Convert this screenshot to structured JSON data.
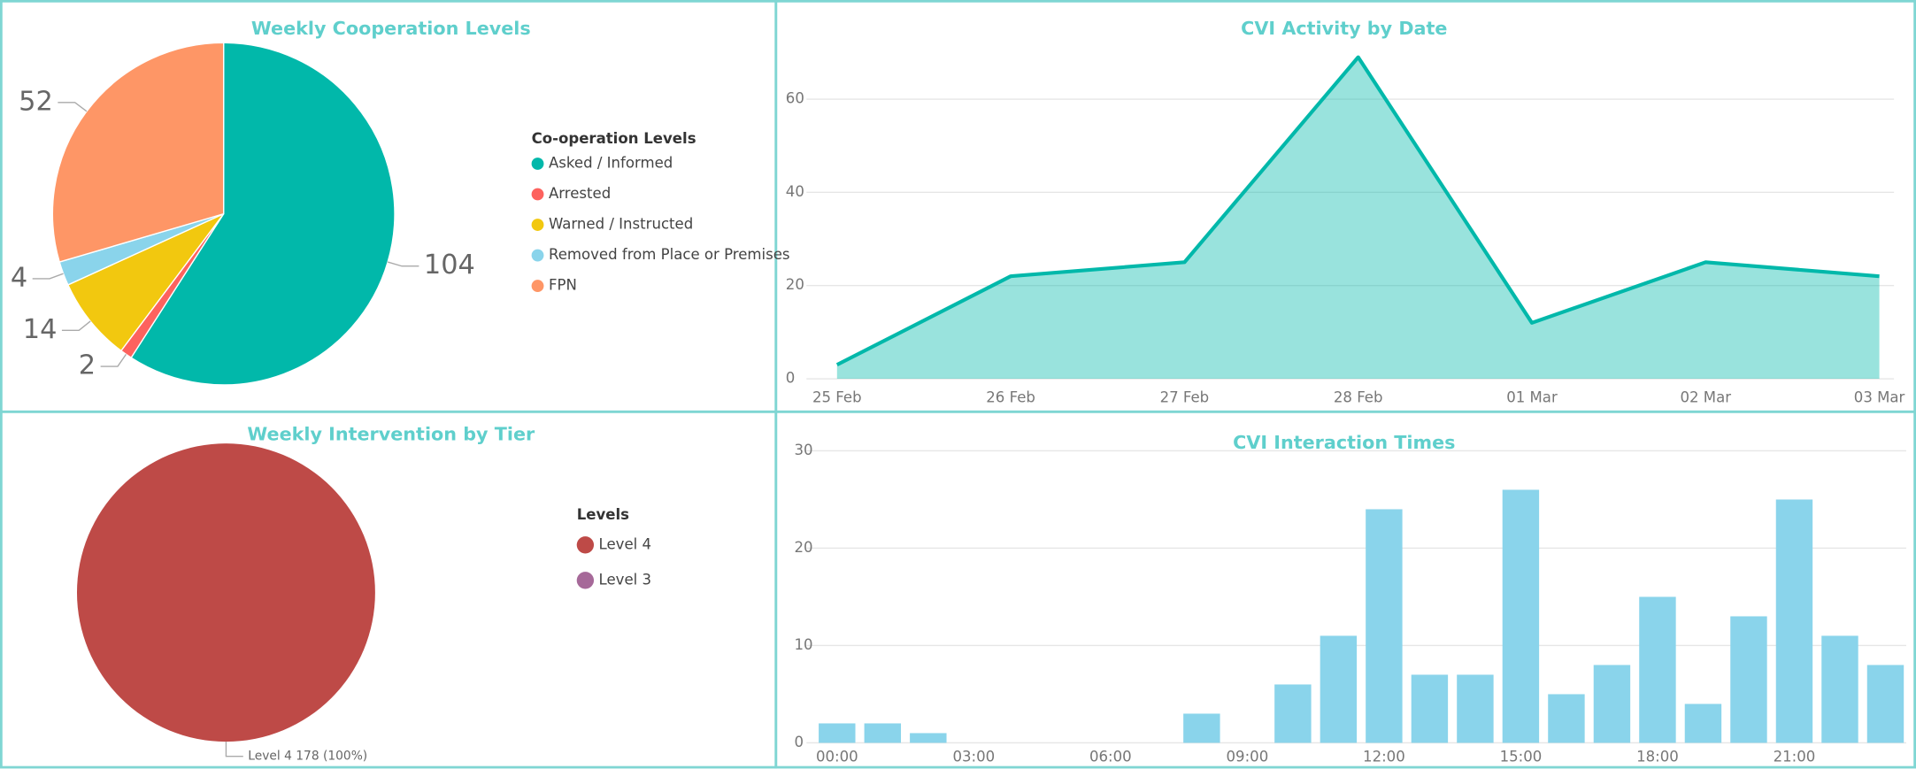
{
  "chart_data": [
    {
      "type": "pie",
      "title": "Weekly Cooperation Levels",
      "legend_title": "Co-operation Levels",
      "categories": [
        "Asked / Informed",
        "Arrested",
        "Warned / Instructed",
        "Removed from Place or Premises",
        "FPN"
      ],
      "values": [
        104,
        2,
        14,
        4,
        52
      ],
      "colors": [
        "#01B8AA",
        "#FD625E",
        "#F2C80F",
        "#8AD4EB",
        "#FE9666"
      ]
    },
    {
      "type": "area",
      "title": "CVI Activity by Date",
      "categories": [
        "25 Feb",
        "26 Feb",
        "27 Feb",
        "28 Feb",
        "01 Mar",
        "02 Mar",
        "03 Mar"
      ],
      "values": [
        3,
        22,
        25,
        69,
        12,
        25,
        22
      ],
      "color": "#01B8AA",
      "ylim": [
        0,
        70
      ],
      "yticks": [
        0,
        20,
        40,
        60
      ],
      "grid": true
    },
    {
      "type": "pie",
      "title": "Weekly Intervention by Tier",
      "legend_title": "Levels",
      "categories": [
        "Level 4",
        "Level 3"
      ],
      "values": [
        178,
        0
      ],
      "value_labels": [
        "Level 4 178 (100%)",
        null
      ],
      "colors": [
        "#BE4A47",
        "#A66999"
      ]
    },
    {
      "type": "bar",
      "title": "CVI Interaction Times",
      "categories": [
        "00:00",
        null,
        null,
        "03:00",
        null,
        null,
        "06:00",
        null,
        null,
        "09:00",
        null,
        null,
        "12:00",
        null,
        null,
        "15:00",
        null,
        null,
        "18:00",
        null,
        null,
        "21:00",
        null,
        null
      ],
      "values": [
        2,
        2,
        1,
        0,
        0,
        0,
        0,
        0,
        3,
        0,
        6,
        11,
        24,
        7,
        7,
        26,
        5,
        8,
        15,
        4,
        13,
        25,
        11,
        8
      ],
      "color": "#8AD4EB",
      "ylim": [
        0,
        30
      ],
      "yticks": [
        0,
        10,
        20,
        30
      ],
      "grid": true
    }
  ]
}
